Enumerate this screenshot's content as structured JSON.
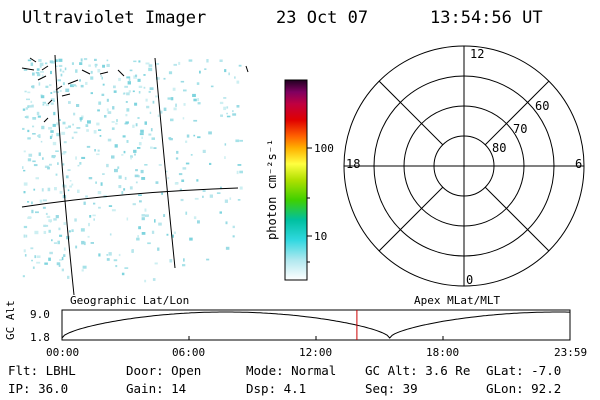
{
  "header": {
    "instrument": "Ultraviolet Imager",
    "date": "23 Oct 07",
    "time": "13:54:56 UT"
  },
  "colorbar": {
    "unit_label": "photon cm⁻²s⁻¹",
    "ticks": [
      "100",
      "10"
    ]
  },
  "polar_plot": {
    "mlt_labels": [
      "12",
      "18",
      "6",
      "0"
    ],
    "lat_labels": [
      "60",
      "70",
      "80"
    ]
  },
  "timeline": {
    "left_caption": "Geographic Lat/Lon",
    "right_caption": "Apex MLat/MLT",
    "y_axis_label": "GC Alt",
    "y_ticks": [
      "9.0",
      "1.8"
    ],
    "x_ticks": [
      "00:00",
      "06:00",
      "12:00",
      "18:00",
      "23:59"
    ],
    "marker_fraction": 0.5805
  },
  "status": {
    "flt": "Flt: LBHL",
    "door": "Door: Open",
    "mode": "Mode: Normal",
    "gc_alt": "GC Alt: 3.6 Re",
    "glat": "GLat:  -7.0",
    "ip": "IP: 36.0",
    "gain": "Gain: 14",
    "dsp": "Dsp:    4.1",
    "seq": "Seq: 39",
    "glon": "GLon:  92.2"
  }
}
